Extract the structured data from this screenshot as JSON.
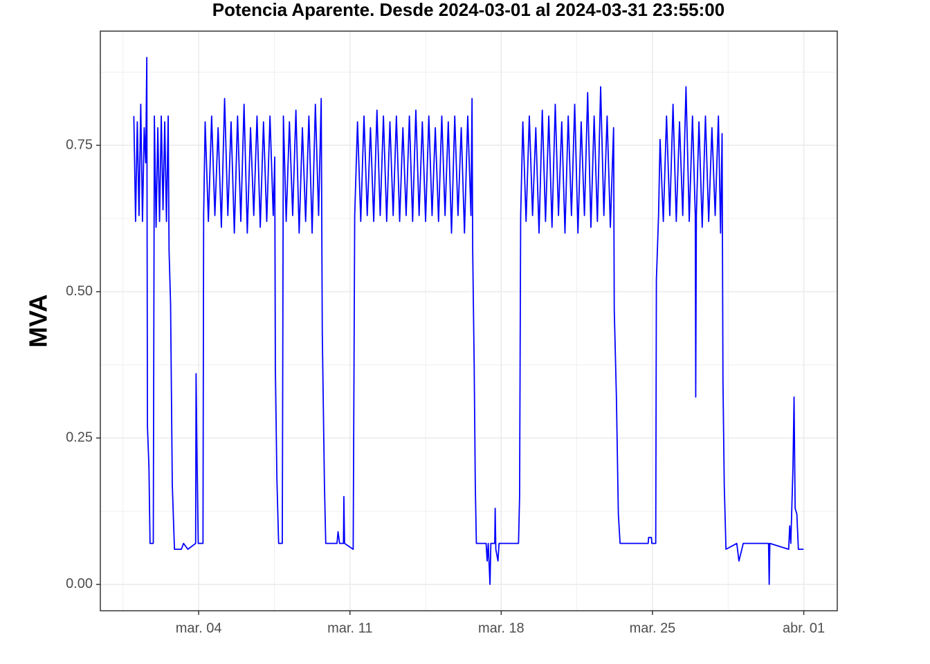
{
  "chart_data": {
    "type": "line",
    "title": "Potencia Aparente. Desde  2024-03-01  al  2024-03-31 23:55:00",
    "y_label": "MVA",
    "color": "#0000ff",
    "grid": true,
    "xlim": [
      -0.55,
      33.55
    ],
    "xticks": [
      {
        "value": 4,
        "label": "mar. 04"
      },
      {
        "value": 11,
        "label": "mar. 11"
      },
      {
        "value": 18,
        "label": "mar. 18"
      },
      {
        "value": 25,
        "label": "mar. 25"
      },
      {
        "value": 32,
        "label": "abr. 01"
      }
    ],
    "ylim": [
      -0.045,
      0.945
    ],
    "yticks": [
      {
        "value": 0,
        "label": "0.00"
      },
      0.25,
      {
        "value": 0.5,
        "label": "0.50"
      },
      0.75
    ],
    "x": [
      1.0,
      1.08,
      1.16,
      1.24,
      1.32,
      1.4,
      1.48,
      1.55,
      1.6,
      1.63,
      1.7,
      1.75,
      1.9,
      1.95,
      2.03,
      2.11,
      2.19,
      2.27,
      2.35,
      2.43,
      2.51,
      2.59,
      2.63,
      2.7,
      2.78,
      2.88,
      3.2,
      3.3,
      3.5,
      3.86,
      3.88,
      3.93,
      3.98,
      4.2,
      4.23,
      4.3,
      4.45,
      4.6,
      4.75,
      4.9,
      5.05,
      5.2,
      5.35,
      5.5,
      5.65,
      5.8,
      5.95,
      6.1,
      6.25,
      6.4,
      6.55,
      6.7,
      6.85,
      7.0,
      7.15,
      7.3,
      7.45,
      7.52,
      7.55,
      7.62,
      7.7,
      7.87,
      7.92,
      8.05,
      8.2,
      8.35,
      8.5,
      8.65,
      8.8,
      8.95,
      9.1,
      9.25,
      9.4,
      9.55,
      9.67,
      9.72,
      9.82,
      9.88,
      10.4,
      10.45,
      10.52,
      10.7,
      10.72,
      10.75,
      11.15,
      11.22,
      11.35,
      11.5,
      11.65,
      11.8,
      11.95,
      12.1,
      12.25,
      12.4,
      12.55,
      12.7,
      12.85,
      13.0,
      13.15,
      13.3,
      13.45,
      13.6,
      13.75,
      13.9,
      14.05,
      14.2,
      14.35,
      14.5,
      14.65,
      14.8,
      14.95,
      15.1,
      15.25,
      15.4,
      15.55,
      15.7,
      15.85,
      16.0,
      16.15,
      16.3,
      16.45,
      16.6,
      16.65,
      16.68,
      16.75,
      16.8,
      16.85,
      17.3,
      17.35,
      17.4,
      17.48,
      17.52,
      17.7,
      17.72,
      17.75,
      17.85,
      17.9,
      18.8,
      18.85,
      18.9,
      19.0,
      19.15,
      19.3,
      19.45,
      19.6,
      19.75,
      19.9,
      20.05,
      20.2,
      20.35,
      20.5,
      20.65,
      20.8,
      20.95,
      21.1,
      21.25,
      21.4,
      21.55,
      21.7,
      21.85,
      22.0,
      22.15,
      22.3,
      22.45,
      22.6,
      22.75,
      22.9,
      23.05,
      23.2,
      23.23,
      23.33,
      23.42,
      23.5,
      24.8,
      24.82,
      24.95,
      24.97,
      25.15,
      25.18,
      25.28,
      25.35,
      25.5,
      25.65,
      25.8,
      25.95,
      26.1,
      26.25,
      26.4,
      26.55,
      26.7,
      26.85,
      26.98,
      27.0,
      27.03,
      27.15,
      27.3,
      27.45,
      27.6,
      27.75,
      27.9,
      28.05,
      28.15,
      28.22,
      28.26,
      28.32,
      28.4,
      28.9,
      29.0,
      29.2,
      29.5,
      30.37,
      30.4,
      30.43,
      31.3,
      31.35,
      31.4,
      31.5,
      31.55,
      31.6,
      31.68,
      31.75,
      31.99
    ],
    "values": [
      0.8,
      0.62,
      0.79,
      0.63,
      0.82,
      0.62,
      0.78,
      0.72,
      0.9,
      0.27,
      0.2,
      0.07,
      0.07,
      0.8,
      0.61,
      0.78,
      0.62,
      0.8,
      0.64,
      0.79,
      0.62,
      0.8,
      0.57,
      0.48,
      0.17,
      0.06,
      0.06,
      0.07,
      0.06,
      0.07,
      0.36,
      0.2,
      0.07,
      0.07,
      0.63,
      0.79,
      0.62,
      0.8,
      0.63,
      0.78,
      0.61,
      0.83,
      0.63,
      0.79,
      0.6,
      0.8,
      0.62,
      0.82,
      0.6,
      0.78,
      0.63,
      0.8,
      0.61,
      0.79,
      0.62,
      0.8,
      0.63,
      0.73,
      0.37,
      0.18,
      0.07,
      0.07,
      0.8,
      0.62,
      0.79,
      0.63,
      0.81,
      0.6,
      0.78,
      0.62,
      0.8,
      0.6,
      0.82,
      0.63,
      0.83,
      0.43,
      0.17,
      0.07,
      0.07,
      0.09,
      0.07,
      0.07,
      0.15,
      0.07,
      0.06,
      0.63,
      0.79,
      0.62,
      0.8,
      0.63,
      0.78,
      0.62,
      0.81,
      0.63,
      0.8,
      0.62,
      0.79,
      0.63,
      0.8,
      0.62,
      0.78,
      0.63,
      0.8,
      0.62,
      0.81,
      0.63,
      0.79,
      0.62,
      0.8,
      0.63,
      0.78,
      0.62,
      0.8,
      0.63,
      0.79,
      0.6,
      0.8,
      0.63,
      0.78,
      0.6,
      0.8,
      0.63,
      0.83,
      0.57,
      0.37,
      0.17,
      0.07,
      0.07,
      0.04,
      0.07,
      0.0,
      0.07,
      0.07,
      0.13,
      0.06,
      0.04,
      0.07,
      0.07,
      0.15,
      0.63,
      0.79,
      0.62,
      0.8,
      0.63,
      0.78,
      0.6,
      0.81,
      0.62,
      0.8,
      0.61,
      0.82,
      0.63,
      0.79,
      0.6,
      0.8,
      0.63,
      0.82,
      0.6,
      0.79,
      0.63,
      0.84,
      0.61,
      0.8,
      0.62,
      0.85,
      0.63,
      0.8,
      0.61,
      0.78,
      0.47,
      0.32,
      0.12,
      0.07,
      0.07,
      0.08,
      0.08,
      0.07,
      0.07,
      0.52,
      0.63,
      0.76,
      0.62,
      0.8,
      0.63,
      0.82,
      0.62,
      0.79,
      0.63,
      0.85,
      0.62,
      0.8,
      0.63,
      0.32,
      0.63,
      0.79,
      0.61,
      0.8,
      0.62,
      0.78,
      0.63,
      0.8,
      0.6,
      0.77,
      0.35,
      0.17,
      0.06,
      0.07,
      0.04,
      0.07,
      0.07,
      0.07,
      0.0,
      0.07,
      0.06,
      0.1,
      0.07,
      0.2,
      0.32,
      0.13,
      0.12,
      0.06,
      0.06
    ]
  }
}
